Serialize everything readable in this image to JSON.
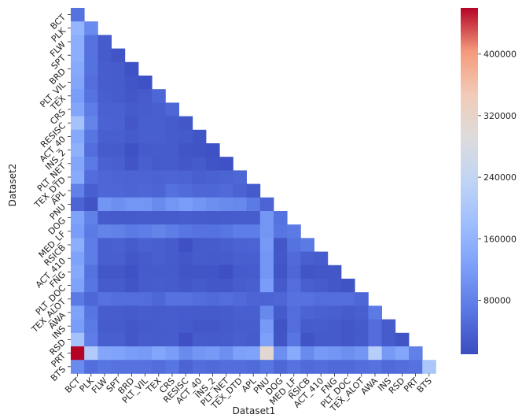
{
  "chart_data": {
    "type": "heatmap",
    "xlabel": "Dataset1",
    "ylabel": "Dataset2",
    "labels": [
      "BCT",
      "PLK",
      "FLW",
      "SPT",
      "BRD",
      "PLT_VIL",
      "TEX",
      "CRS",
      "RESISC",
      "ACT_40",
      "INS_2",
      "PLT_NET",
      "TEX_DTD",
      "APL",
      "PNU",
      "DOG",
      "MED_LF",
      "RSICB",
      "ACT_410",
      "FNG",
      "PLT_DOC",
      "TEX_ALOT",
      "AWA",
      "INS",
      "RSD",
      "PRT",
      "BTS"
    ],
    "mask": "upper triangle above diagonal (j > i) hidden",
    "colorbar": {
      "colormap": "coolwarm",
      "vmin": 10000,
      "vmax": 460000,
      "ticks": [
        80000,
        160000,
        240000,
        320000,
        400000
      ],
      "tick_labels": [
        "80000",
        "160000",
        "240000",
        "320000",
        "400000"
      ]
    },
    "grid": false,
    "values": [
      [
        60000
      ],
      [
        165000,
        95000
      ],
      [
        150000,
        60000,
        30000
      ],
      [
        150000,
        60000,
        28000,
        22000
      ],
      [
        140000,
        60000,
        32000,
        30000,
        18000
      ],
      [
        135000,
        55000,
        32000,
        30000,
        22000,
        18000
      ],
      [
        120000,
        60000,
        35000,
        30000,
        25000,
        30000,
        45000
      ],
      [
        135000,
        75000,
        38000,
        38000,
        28000,
        32000,
        35000,
        45000
      ],
      [
        190000,
        85000,
        40000,
        38000,
        25000,
        35000,
        35000,
        30000,
        25000
      ],
      [
        140000,
        65000,
        35000,
        35000,
        28000,
        35000,
        35000,
        30000,
        28000,
        22000
      ],
      [
        155000,
        55000,
        30000,
        28000,
        18000,
        28000,
        30000,
        30000,
        22000,
        20000,
        18000
      ],
      [
        135000,
        70000,
        38000,
        35000,
        22000,
        35000,
        28000,
        30000,
        25000,
        28000,
        20000,
        18000
      ],
      [
        145000,
        55000,
        45000,
        42000,
        40000,
        40000,
        40000,
        42000,
        40000,
        35000,
        38000,
        40000,
        45000
      ],
      [
        80000,
        35000,
        45000,
        45000,
        42000,
        45000,
        42000,
        58000,
        52000,
        45000,
        45000,
        50000,
        40000,
        28000
      ],
      [
        40000,
        20000,
        110000,
        100000,
        110000,
        110000,
        95000,
        110000,
        120000,
        110000,
        100000,
        95000,
        90000,
        70000,
        40000
      ],
      [
        130000,
        80000,
        30000,
        28000,
        28000,
        30000,
        30000,
        30000,
        32000,
        30000,
        28000,
        30000,
        32000,
        32000,
        110000,
        60000
      ],
      [
        120000,
        70000,
        85000,
        80000,
        70000,
        75000,
        85000,
        75000,
        65000,
        60000,
        60000,
        65000,
        75000,
        75000,
        110000,
        65000,
        70000
      ],
      [
        150000,
        75000,
        35000,
        38000,
        30000,
        38000,
        35000,
        30000,
        15000,
        28000,
        30000,
        35000,
        40000,
        40000,
        115000,
        25000,
        60000,
        70000
      ],
      [
        130000,
        75000,
        35000,
        35000,
        25000,
        30000,
        35000,
        30000,
        25000,
        30000,
        28000,
        30000,
        35000,
        35000,
        110000,
        25000,
        50000,
        35000,
        30000
      ],
      [
        140000,
        60000,
        25000,
        25000,
        18000,
        28000,
        28000,
        28000,
        22000,
        22000,
        22000,
        15000,
        28000,
        30000,
        110000,
        20000,
        45000,
        22000,
        25000,
        25000
      ],
      [
        130000,
        65000,
        30000,
        30000,
        22000,
        30000,
        32000,
        30000,
        25000,
        28000,
        25000,
        25000,
        32000,
        35000,
        120000,
        28000,
        55000,
        35000,
        30000,
        25000,
        20000
      ],
      [
        70000,
        45000,
        60000,
        55000,
        55000,
        55000,
        45000,
        60000,
        60000,
        55000,
        50000,
        55000,
        50000,
        42000,
        40000,
        45000,
        60000,
        60000,
        55000,
        55000,
        55000,
        45000
      ],
      [
        130000,
        65000,
        32000,
        32000,
        28000,
        32000,
        30000,
        32000,
        30000,
        28000,
        28000,
        30000,
        35000,
        35000,
        90000,
        28000,
        55000,
        40000,
        38000,
        35000,
        30000,
        35000,
        70000
      ],
      [
        120000,
        70000,
        30000,
        30000,
        25000,
        28000,
        30000,
        32000,
        28000,
        25000,
        25000,
        28000,
        32000,
        32000,
        115000,
        20000,
        55000,
        30000,
        32000,
        28000,
        25000,
        28000,
        55000,
        30000
      ],
      [
        190000,
        75000,
        35000,
        35000,
        25000,
        32000,
        30000,
        32000,
        15000,
        30000,
        28000,
        30000,
        35000,
        30000,
        125000,
        22000,
        65000,
        20000,
        28000,
        28000,
        25000,
        28000,
        55000,
        30000,
        20000
      ],
      [
        460000,
        210000,
        135000,
        130000,
        120000,
        115000,
        135000,
        120000,
        95000,
        110000,
        115000,
        100000,
        125000,
        130000,
        310000,
        100000,
        145000,
        95000,
        115000,
        110000,
        100000,
        110000,
        220000,
        115000,
        135000,
        80000
      ],
      [
        95000,
        55000,
        65000,
        60000,
        60000,
        60000,
        55000,
        65000,
        40000,
        55000,
        50000,
        55000,
        55000,
        50000,
        65000,
        45000,
        60000,
        50000,
        55000,
        50000,
        50000,
        55000,
        60000,
        50000,
        55000,
        60000,
        200000
      ]
    ]
  }
}
